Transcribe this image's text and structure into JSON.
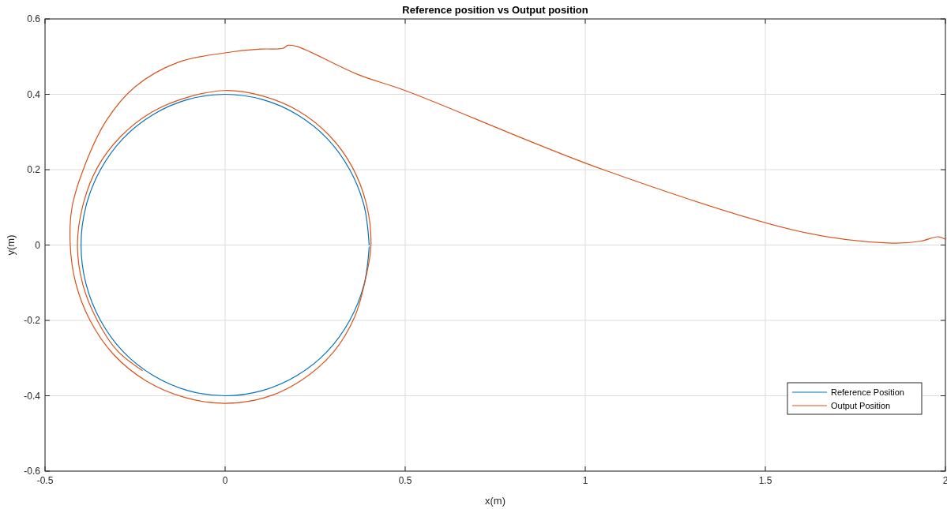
{
  "chart_data": {
    "type": "line",
    "title": "Reference position vs Output position",
    "xlabel": "x(m)",
    "ylabel": "y(m)",
    "xlim": [
      -0.5,
      2
    ],
    "ylim": [
      -0.6,
      0.6
    ],
    "xticks": [
      -0.5,
      0,
      0.5,
      1,
      1.5,
      2
    ],
    "yticks": [
      -0.6,
      -0.4,
      -0.2,
      0,
      0.2,
      0.4,
      0.6
    ],
    "grid": true,
    "legend": "bottom right",
    "line_style": "solid",
    "marker": "none",
    "series": [
      {
        "name": "Reference Position",
        "color": "#0072bd",
        "x": [
          0.4,
          0.386,
          0.346,
          0.283,
          0.2,
          0.104,
          0,
          -0.104,
          -0.2,
          -0.283,
          -0.346,
          -0.386,
          -0.4,
          -0.386,
          -0.346,
          -0.283,
          -0.2,
          -0.104,
          0,
          0.104,
          0.2,
          0.283,
          0.346,
          0.386,
          0.4
        ],
        "values": [
          0,
          0.104,
          0.2,
          0.283,
          0.346,
          0.386,
          0.4,
          0.386,
          0.346,
          0.283,
          0.2,
          0.104,
          0,
          -0.104,
          -0.2,
          -0.283,
          -0.346,
          -0.386,
          -0.4,
          -0.386,
          -0.346,
          -0.283,
          -0.2,
          -0.104,
          -0.005
        ]
      },
      {
        "name": "Output Position",
        "color": "#d95319",
        "x": [
          2,
          1.98,
          1.93,
          1.85,
          1.6,
          1.05,
          0.5,
          0.37,
          0.2,
          0.175,
          0.16,
          0.1,
          0,
          -0.13,
          -0.25,
          -0.33,
          -0.39,
          -0.425,
          -0.43,
          -0.415,
          -0.375,
          -0.31,
          -0.22,
          -0.11,
          0,
          0.11,
          0.21,
          0.3,
          0.36,
          0.39,
          0.405,
          0.393,
          0.353,
          0.29,
          0.205,
          0.106,
          0,
          -0.105,
          -0.205,
          -0.29,
          -0.355,
          -0.395,
          -0.41,
          -0.395,
          -0.355,
          -0.3,
          -0.23
        ],
        "values": [
          0.015,
          0.022,
          0.01,
          0.005,
          0.035,
          0.2,
          0.41,
          0.452,
          0.527,
          0.53,
          0.522,
          0.52,
          0.51,
          0.485,
          0.42,
          0.33,
          0.21,
          0.1,
          0,
          -0.1,
          -0.2,
          -0.29,
          -0.36,
          -0.405,
          -0.42,
          -0.405,
          -0.36,
          -0.285,
          -0.19,
          -0.09,
          0,
          0.106,
          0.207,
          0.29,
          0.355,
          0.395,
          0.41,
          0.392,
          0.352,
          0.288,
          0.205,
          0.105,
          0,
          -0.105,
          -0.2,
          -0.28,
          -0.333
        ]
      }
    ]
  }
}
